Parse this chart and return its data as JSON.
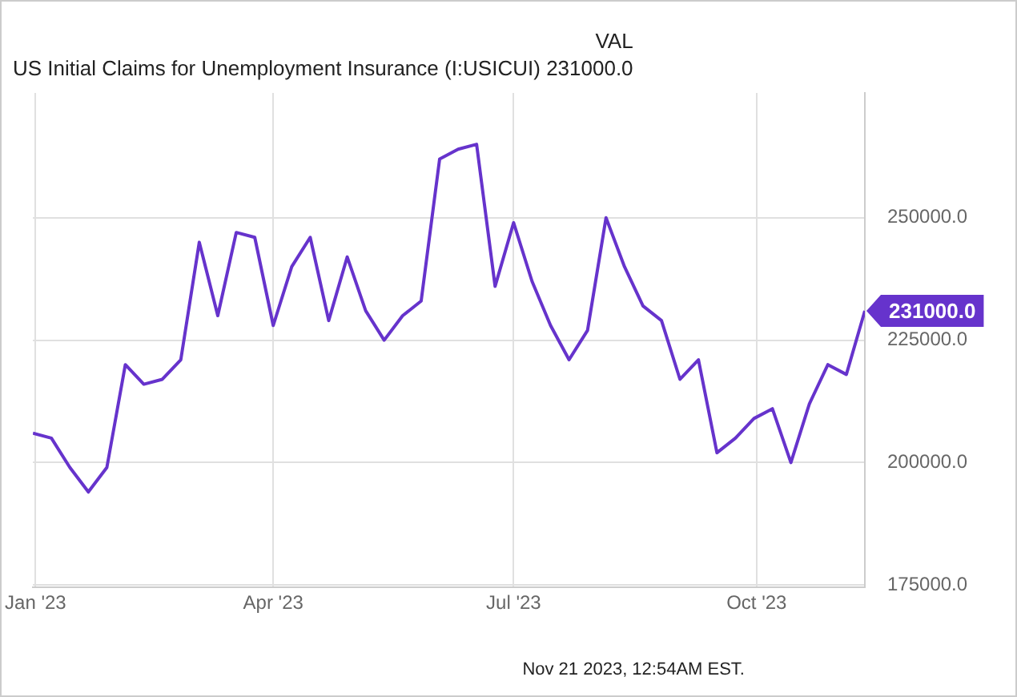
{
  "chart_data": {
    "type": "line",
    "legend_title": "VAL",
    "x": [
      "2022-12-31",
      "2023-01-07",
      "2023-01-14",
      "2023-01-21",
      "2023-01-28",
      "2023-02-04",
      "2023-02-11",
      "2023-02-18",
      "2023-02-25",
      "2023-03-04",
      "2023-03-11",
      "2023-03-18",
      "2023-03-25",
      "2023-04-01",
      "2023-04-08",
      "2023-04-15",
      "2023-04-22",
      "2023-04-29",
      "2023-05-06",
      "2023-05-13",
      "2023-05-20",
      "2023-05-27",
      "2023-06-03",
      "2023-06-10",
      "2023-06-17",
      "2023-06-24",
      "2023-07-01",
      "2023-07-08",
      "2023-07-15",
      "2023-07-22",
      "2023-07-29",
      "2023-08-05",
      "2023-08-12",
      "2023-08-19",
      "2023-08-26",
      "2023-09-02",
      "2023-09-09",
      "2023-09-16",
      "2023-09-23",
      "2023-09-30",
      "2023-10-07",
      "2023-10-14",
      "2023-10-21",
      "2023-10-28",
      "2023-11-04",
      "2023-11-11"
    ],
    "series": [
      {
        "name": "US Initial Claims for Unemployment Insurance (I:USICUI)",
        "color": "#6633cc",
        "values": [
          206000,
          205000,
          199000,
          194000,
          199000,
          220000,
          216000,
          217000,
          221000,
          245000,
          230000,
          247000,
          246000,
          228000,
          240000,
          246000,
          229000,
          242000,
          231000,
          225000,
          230000,
          233000,
          262000,
          264000,
          265000,
          236000,
          249000,
          237000,
          228000,
          221000,
          227000,
          250000,
          240000,
          232000,
          229000,
          217000,
          221000,
          202000,
          205000,
          209000,
          211000,
          200000,
          212000,
          220000,
          218000,
          231000
        ]
      }
    ],
    "xlim": [
      "2022-12-31",
      "2023-11-11"
    ],
    "xticks": [
      {
        "value": "2023-01-01",
        "label": "Jan '23"
      },
      {
        "value": "2023-04-01",
        "label": "Apr '23"
      },
      {
        "value": "2023-07-01",
        "label": "Jul '23"
      },
      {
        "value": "2023-10-01",
        "label": "Oct '23"
      }
    ],
    "ylim": [
      174500,
      275500
    ],
    "yticks": [
      {
        "value": 175000,
        "label": "175000.0"
      },
      {
        "value": 200000,
        "label": "200000.0"
      },
      {
        "value": 225000,
        "label": "225000.0"
      },
      {
        "value": 250000,
        "label": "250000.0"
      }
    ],
    "grid": true,
    "legend": "top left",
    "marker": "none",
    "line_style": "solid",
    "annotations": [
      "231000.0",
      {
        "text": "231000.0",
        "x": "2023-11-11",
        "y": 231000
      },
      "Nov 21 2023, 12:54AM EST."
    ]
  }
}
